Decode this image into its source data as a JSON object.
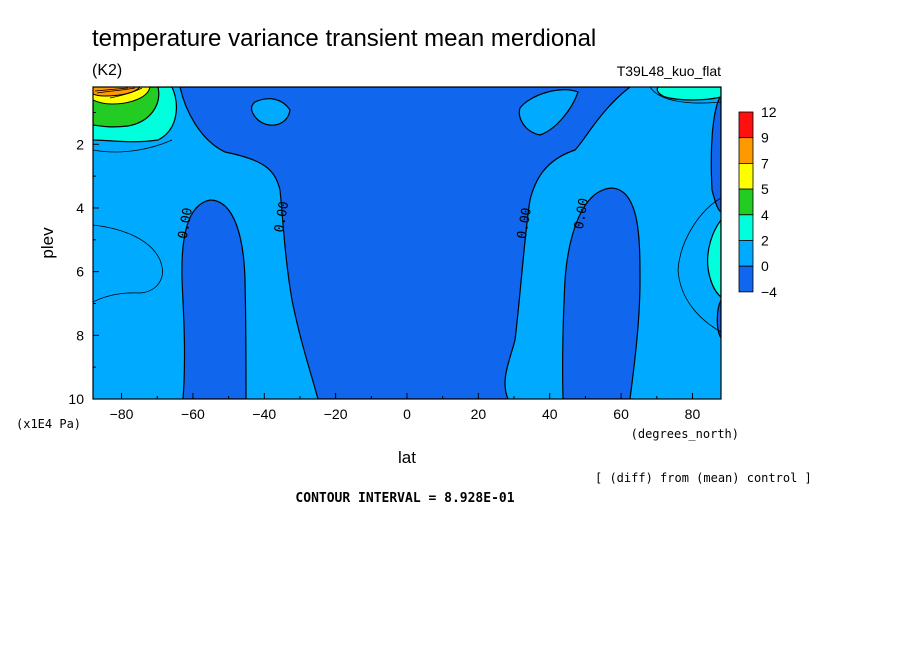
{
  "chart_data": {
    "type": "heatmap",
    "subtype": "filled-contour",
    "title": "temperature variance transient mean merdional",
    "units": "(K2)",
    "run_label": "T39L48_kuo_flat",
    "xlabel": "lat",
    "x_units": "(degrees_north)",
    "ylabel": "plev",
    "y_units": "(x1E4 Pa)",
    "xlim": [
      -88,
      88
    ],
    "ylim": [
      0.2,
      10
    ],
    "y_inverted": true,
    "x_ticks": [
      -80,
      -60,
      -40,
      -20,
      0,
      20,
      40,
      60,
      80
    ],
    "y_ticks": [
      2,
      4,
      6,
      8,
      10
    ],
    "contour_labels": [
      {
        "text": "0.00",
        "lat": -61,
        "plev": 4.5
      },
      {
        "text": "0.00",
        "lat": -34,
        "plev": 4.3
      },
      {
        "text": "0.00",
        "lat": 34,
        "plev": 4.5
      },
      {
        "text": "0.00",
        "lat": 50,
        "plev": 4.2
      }
    ],
    "colorbar": {
      "levels": [
        "12",
        "9",
        "7",
        "5",
        "4",
        "2",
        "0",
        "-4"
      ],
      "colors": [
        "#ff1010",
        "#ff9900",
        "#ffff00",
        "#22cc22",
        "#00ffdd",
        "#00aaff",
        "#1166ee"
      ]
    },
    "regions": [
      {
        "band": "0 to 2",
        "color": "#00aaff"
      },
      {
        "band": "-4 to 0",
        "color": "#1166ee"
      },
      {
        "band": "2 to 4",
        "color": "#00ffdd"
      },
      {
        "band": "4 to 5",
        "color": "#22cc22"
      },
      {
        "band": "5 to 7",
        "color": "#ffff00"
      },
      {
        "band": "7 to 9",
        "color": "#ff9900"
      }
    ],
    "footer_note": "[ (diff) from (mean) control ]",
    "contour_interval": "CONTOUR INTERVAL = 8.928E-01"
  }
}
